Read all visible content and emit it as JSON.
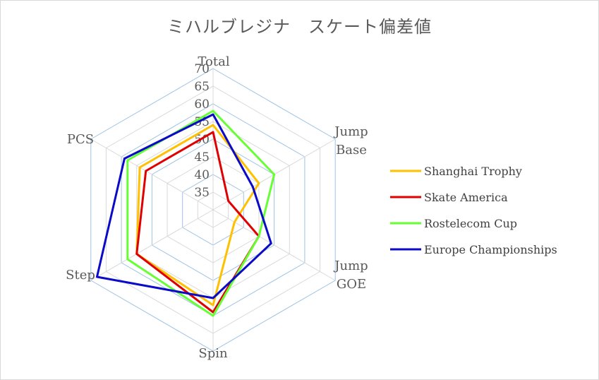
{
  "chart_data": {
    "type": "radar",
    "title": "ミハルブレジナ　スケート偏差値",
    "axes": [
      [
        "Total"
      ],
      [
        "Jump",
        "Base"
      ],
      [
        "Jump",
        "GOE"
      ],
      [
        "Spin"
      ],
      [
        "Step"
      ],
      [
        "PCS"
      ]
    ],
    "ticks": [
      30,
      35,
      40,
      45,
      50,
      55,
      60,
      65,
      70
    ],
    "tick_labels": [
      "35",
      "40",
      "45",
      "50",
      "55",
      "60",
      "65",
      "70"
    ],
    "rmin": 30,
    "rmax": 70,
    "legend_position": "right",
    "series": [
      {
        "name": "Shanghai Trophy",
        "color": "#FFC000",
        "values": [
          54,
          45,
          37,
          57,
          55,
          54
        ]
      },
      {
        "name": "Skate America",
        "color": "#E00000",
        "values": [
          52,
          35,
          45,
          59,
          55,
          52
        ]
      },
      {
        "name": "Rostelecom Cup",
        "color": "#66FF33",
        "values": [
          58,
          50,
          45,
          60,
          58,
          58
        ]
      },
      {
        "name": "Europe Championships",
        "color": "#0A0AC8",
        "values": [
          57,
          43,
          49,
          55,
          68,
          59
        ]
      }
    ]
  }
}
